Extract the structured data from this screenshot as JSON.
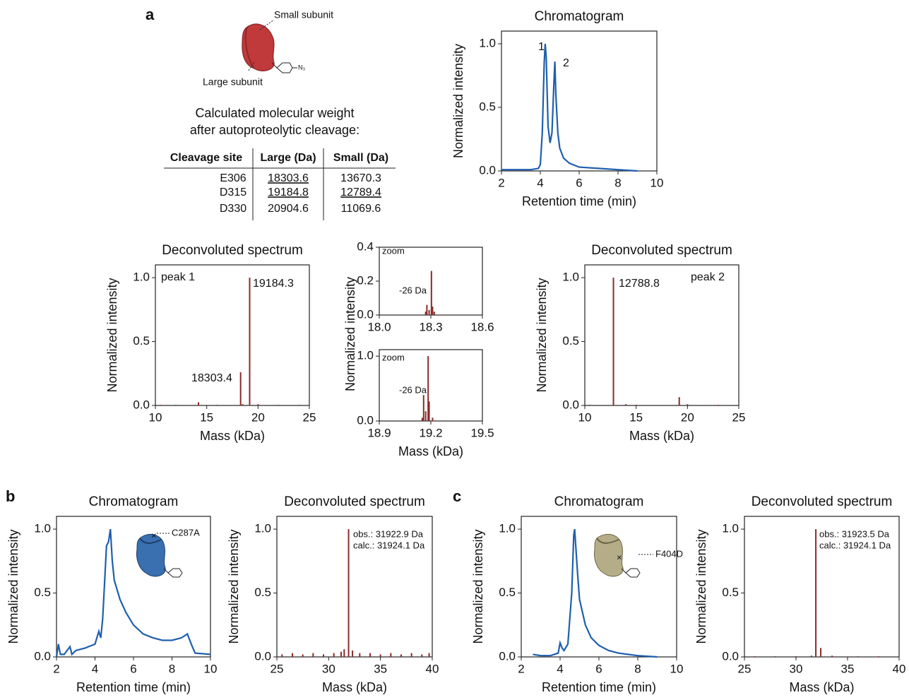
{
  "panel_labels": [
    "a",
    "b",
    "c"
  ],
  "diagram": {
    "small": "Small subunit",
    "large": "Large subunit",
    "azide": "N₃"
  },
  "caption": [
    "Calculated molecular weight",
    "after autoproteolytic cleavage:"
  ],
  "table": {
    "header": [
      "Cleavage site",
      "Large (Da)",
      "Small (Da)"
    ],
    "rows": [
      [
        "E306",
        "18303.6",
        "13670.3"
      ],
      [
        "D315",
        "19184.8",
        "12789.4"
      ],
      [
        "D330",
        "20904.6",
        "11069.6"
      ]
    ]
  },
  "zoom_ylabel": "Normalized intensity",
  "chart_data": [
    {
      "type": "line",
      "title": "Chromatogram",
      "xlabel": "Retention time (min)",
      "ylabel": "Normalized intensity",
      "color": "#1f5fae",
      "x": [
        2,
        2.5,
        3,
        3.5,
        3.9,
        4.0,
        4.1,
        4.2,
        4.25,
        4.3,
        4.4,
        4.5,
        4.6,
        4.7,
        4.75,
        4.8,
        4.9,
        5.0,
        5.2,
        5.5,
        6,
        7,
        8,
        9
      ],
      "values": [
        0.01,
        0.01,
        0.01,
        0.01,
        0.02,
        0.05,
        0.3,
        0.85,
        1.0,
        0.9,
        0.35,
        0.22,
        0.3,
        0.7,
        0.86,
        0.6,
        0.3,
        0.18,
        0.1,
        0.06,
        0.03,
        0.02,
        0.01,
        0.0
      ],
      "xlim": [
        2,
        10
      ],
      "ylim": [
        0,
        1.1
      ],
      "xticks": [
        2,
        4,
        6,
        8,
        10
      ],
      "yticks": [
        {
          "value": 0,
          "label": "0.0"
        },
        0.5,
        {
          "value": 1,
          "label": "1.0"
        }
      ],
      "annotations": [
        "1",
        "2"
      ]
    },
    {
      "type": "stem",
      "title": "Deconvoluted spectrum",
      "xlabel": "Mass (kDa)",
      "ylabel": "Normalized intensity",
      "color": "#8b2a2a",
      "x": [
        10.5,
        12,
        14.2,
        16,
        18.3034,
        18.5,
        19.1843,
        20,
        22,
        24
      ],
      "values": [
        0.005,
        0.005,
        0.025,
        0.005,
        0.26,
        0.01,
        1.0,
        0.01,
        0.005,
        0.005
      ],
      "xlim": [
        10,
        25
      ],
      "ylim": [
        0,
        1.1
      ],
      "xticks": [
        10,
        15,
        20,
        25
      ],
      "yticks": [
        {
          "value": 0,
          "label": "0.0"
        },
        0.5,
        {
          "value": 1,
          "label": "1.0"
        }
      ],
      "annotations": [
        "peak 1",
        "19184.3",
        "18303.4"
      ]
    },
    {
      "type": "stem",
      "color": "#8b2a2a",
      "x": [
        18.27,
        18.277,
        18.29,
        18.3034,
        18.31,
        18.32
      ],
      "values": [
        0.02,
        0.06,
        0.03,
        0.26,
        0.05,
        0.02
      ],
      "xlim": [
        18.0,
        18.6
      ],
      "ylim": [
        0,
        0.4
      ],
      "xticks": [
        {
          "value": 18,
          "label": "18.0"
        },
        18.3,
        18.6
      ],
      "yticks": [
        {
          "value": 0,
          "label": "0.0"
        },
        0.2,
        0.4
      ],
      "annotations": [
        "zoom",
        "-26 Da"
      ]
    },
    {
      "type": "stem",
      "xlabel": "Mass (kDa)",
      "color": "#8b2a2a",
      "x": [
        19.15,
        19.158,
        19.17,
        19.1843,
        19.19,
        19.21
      ],
      "values": [
        0.05,
        0.4,
        0.15,
        1.0,
        0.3,
        0.05
      ],
      "xlim": [
        18.9,
        19.5
      ],
      "ylim": [
        0,
        1.1
      ],
      "xticks": [
        18.9,
        19.2,
        19.5
      ],
      "yticks": [
        {
          "value": 0,
          "label": "0.0"
        },
        {
          "value": 1,
          "label": "1.0"
        }
      ],
      "annotations": [
        "zoom",
        "-26 Da"
      ]
    },
    {
      "type": "stem",
      "title": "Deconvoluted spectrum",
      "xlabel": "Mass (kDa)",
      "ylabel": "Normalized intensity",
      "color": "#8b2a2a",
      "x": [
        10.5,
        12.7888,
        14,
        15,
        19.2,
        20,
        23
      ],
      "values": [
        0.005,
        1.0,
        0.01,
        0.005,
        0.065,
        0.01,
        0.005
      ],
      "xlim": [
        10,
        25
      ],
      "ylim": [
        0,
        1.1
      ],
      "xticks": [
        10,
        15,
        20,
        25
      ],
      "yticks": [
        {
          "value": 0,
          "label": "0.0"
        },
        0.5,
        {
          "value": 1,
          "label": "1.0"
        }
      ],
      "annotations": [
        "12788.8",
        "peak 2"
      ]
    },
    {
      "type": "line",
      "title": "Chromatogram",
      "xlabel": "Retention time (min)",
      "ylabel": "Normalized intensity",
      "color": "#1f5fae",
      "x": [
        2,
        2.1,
        2.2,
        2.4,
        2.7,
        2.8,
        3,
        3.5,
        4,
        4.2,
        4.3,
        4.4,
        4.6,
        4.7,
        4.8,
        4.9,
        5,
        5.3,
        5.6,
        6,
        6.5,
        7,
        7.5,
        8,
        8.5,
        8.8,
        9,
        9.2,
        10
      ],
      "values": [
        0.0,
        0.1,
        0.02,
        0.02,
        0.08,
        0.02,
        0.05,
        0.07,
        0.1,
        0.2,
        0.15,
        0.3,
        0.87,
        0.9,
        1.0,
        0.75,
        0.6,
        0.45,
        0.35,
        0.25,
        0.18,
        0.15,
        0.13,
        0.13,
        0.15,
        0.18,
        0.1,
        0.03,
        0.02
      ],
      "xlim": [
        2,
        10
      ],
      "ylim": [
        0,
        1.1
      ],
      "xticks": [
        2,
        4,
        6,
        8,
        10
      ],
      "yticks": [
        {
          "value": 0,
          "label": "0.0"
        },
        0.5,
        {
          "value": 1,
          "label": "1.0"
        }
      ],
      "annotations": [
        "C287A"
      ]
    },
    {
      "type": "stem",
      "title": "Deconvoluted spectrum",
      "xlabel": "Mass (kDa)",
      "ylabel": "Normalized intensity",
      "color": "#8b2a2a",
      "x": [
        25.5,
        26.5,
        27.5,
        28.5,
        29.5,
        30.5,
        31.2,
        31.5,
        31.9229,
        32.3,
        33,
        34,
        35,
        36,
        37,
        38,
        39,
        39.7
      ],
      "values": [
        0.02,
        0.03,
        0.02,
        0.03,
        0.02,
        0.03,
        0.04,
        0.06,
        1.0,
        0.05,
        0.03,
        0.03,
        0.02,
        0.03,
        0.02,
        0.03,
        0.02,
        0.03
      ],
      "xlim": [
        25,
        40
      ],
      "ylim": [
        0,
        1.1
      ],
      "xticks": [
        25,
        30,
        35,
        40
      ],
      "yticks": [
        {
          "value": 0,
          "label": "0.0"
        },
        0.5,
        {
          "value": 1,
          "label": "1.0"
        }
      ],
      "annotations": [
        "obs.: 31922.9 Da",
        "calc.: 31924.1 Da"
      ]
    },
    {
      "type": "line",
      "title": "Chromatogram",
      "xlabel": "Retention time (min)",
      "ylabel": "Normalized intensity",
      "color": "#1f5fae",
      "x": [
        2.6,
        3,
        3.5,
        3.9,
        4,
        4.1,
        4.2,
        4.4,
        4.6,
        4.7,
        4.75,
        4.9,
        5,
        5.3,
        5.6,
        6,
        6.5,
        7,
        8,
        9
      ],
      "values": [
        0.02,
        0.01,
        0.01,
        0.03,
        0.11,
        0.07,
        0.05,
        0.1,
        0.5,
        0.95,
        1.0,
        0.65,
        0.45,
        0.25,
        0.15,
        0.09,
        0.05,
        0.03,
        0.01,
        0.0
      ],
      "xlim": [
        2,
        10
      ],
      "ylim": [
        0,
        1.1
      ],
      "xticks": [
        2,
        4,
        6,
        8,
        10
      ],
      "yticks": [
        {
          "value": 0,
          "label": "0.0"
        },
        0.5,
        {
          "value": 1,
          "label": "1.0"
        }
      ],
      "annotations": [
        "F404D"
      ]
    },
    {
      "type": "stem",
      "title": "Deconvoluted spectrum",
      "xlabel": "Mass (kDa)",
      "ylabel": "Normalized intensity",
      "color": "#8b2a2a",
      "x": [
        26,
        28,
        30,
        31.5,
        31.9235,
        32.4,
        33.5,
        36,
        38
      ],
      "values": [
        0.005,
        0.005,
        0.005,
        0.01,
        1.0,
        0.07,
        0.01,
        0.005,
        0.005
      ],
      "xlim": [
        25,
        40
      ],
      "ylim": [
        0,
        1.1
      ],
      "xticks": [
        25,
        30,
        35,
        40
      ],
      "yticks": [
        {
          "value": 0,
          "label": "0.0"
        },
        0.5,
        {
          "value": 1,
          "label": "1.0"
        }
      ],
      "annotations": [
        "obs.: 31923.5 Da",
        "calc.: 31924.1 Da"
      ]
    }
  ]
}
